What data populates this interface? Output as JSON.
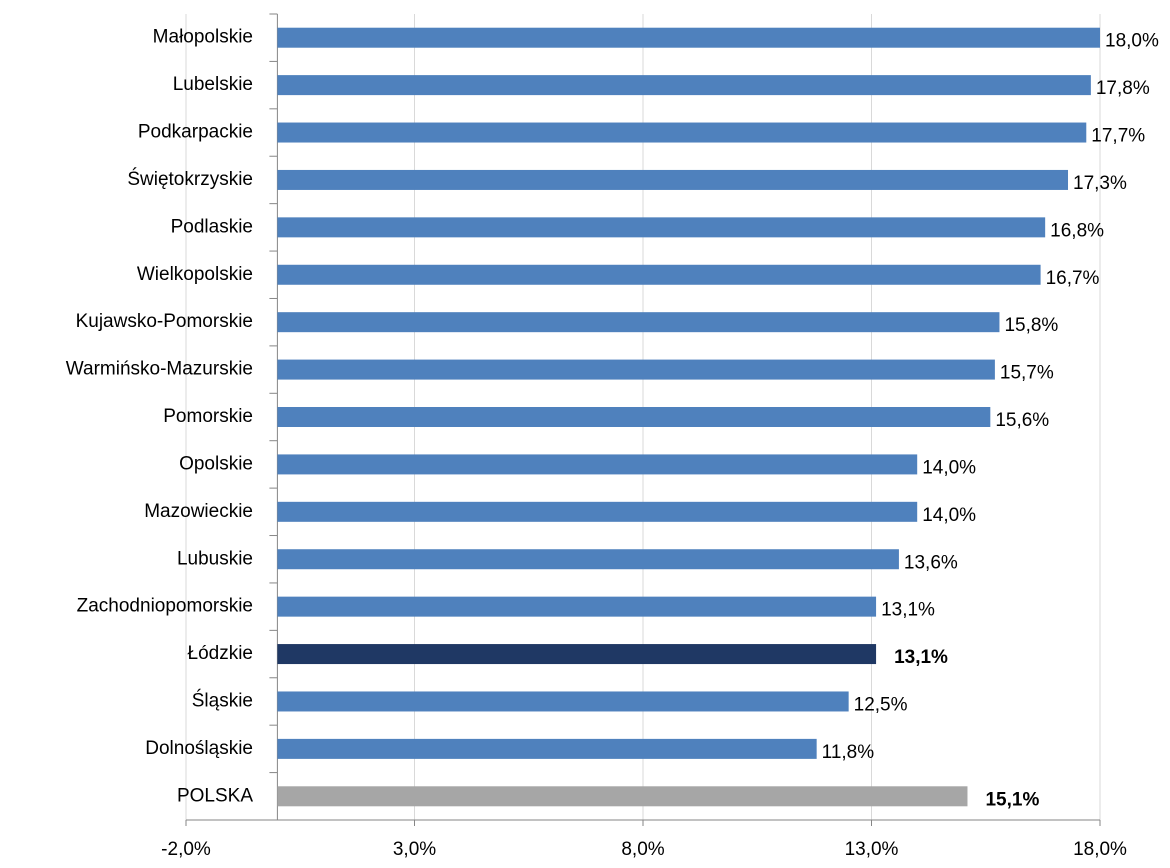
{
  "chart_data": {
    "type": "barh",
    "categories": [
      "Małopolskie",
      "Lubelskie",
      "Podkarpackie",
      "Świętokrzyskie",
      "Podlaskie",
      "Wielkopolskie",
      "Kujawsko-Pomorskie",
      "Warmińsko-Mazurskie",
      "Pomorskie",
      "Opolskie",
      "Mazowieckie",
      "Lubuskie",
      "Zachodniopomorskie",
      "Łódzkie",
      "Śląskie",
      "Dolnośląskie",
      "POLSKA"
    ],
    "values": [
      18.0,
      17.8,
      17.7,
      17.3,
      16.8,
      16.7,
      15.8,
      15.7,
      15.6,
      14.0,
      14.0,
      13.6,
      13.1,
      13.1,
      12.5,
      11.8,
      15.1
    ],
    "value_labels": [
      "18,0%",
      "17,8%",
      "17,7%",
      "17,3%",
      "16,8%",
      "16,7%",
      "15,8%",
      "15,7%",
      "15,6%",
      "14,0%",
      "14,0%",
      "13,6%",
      "13,1%",
      "13,1%",
      "12,5%",
      "11,8%",
      "15,1%"
    ],
    "colors": [
      "#4f81bd",
      "#4f81bd",
      "#4f81bd",
      "#4f81bd",
      "#4f81bd",
      "#4f81bd",
      "#4f81bd",
      "#4f81bd",
      "#4f81bd",
      "#4f81bd",
      "#4f81bd",
      "#4f81bd",
      "#4f81bd",
      "#1f3864",
      "#4f81bd",
      "#4f81bd",
      "#a6a6a6"
    ],
    "value_label_bold": [
      false,
      false,
      false,
      false,
      false,
      false,
      false,
      false,
      false,
      false,
      false,
      false,
      false,
      true,
      false,
      false,
      true
    ],
    "xlim": [
      -2,
      18
    ],
    "xticks": [
      {
        "value": -2,
        "label": "-2,0%"
      },
      {
        "value": 3,
        "label": "3,0%"
      },
      {
        "value": 8,
        "label": "8,0%"
      },
      {
        "value": 13,
        "label": "13,0%"
      },
      {
        "value": 18,
        "label": "18,0%"
      }
    ],
    "grid": true
  }
}
